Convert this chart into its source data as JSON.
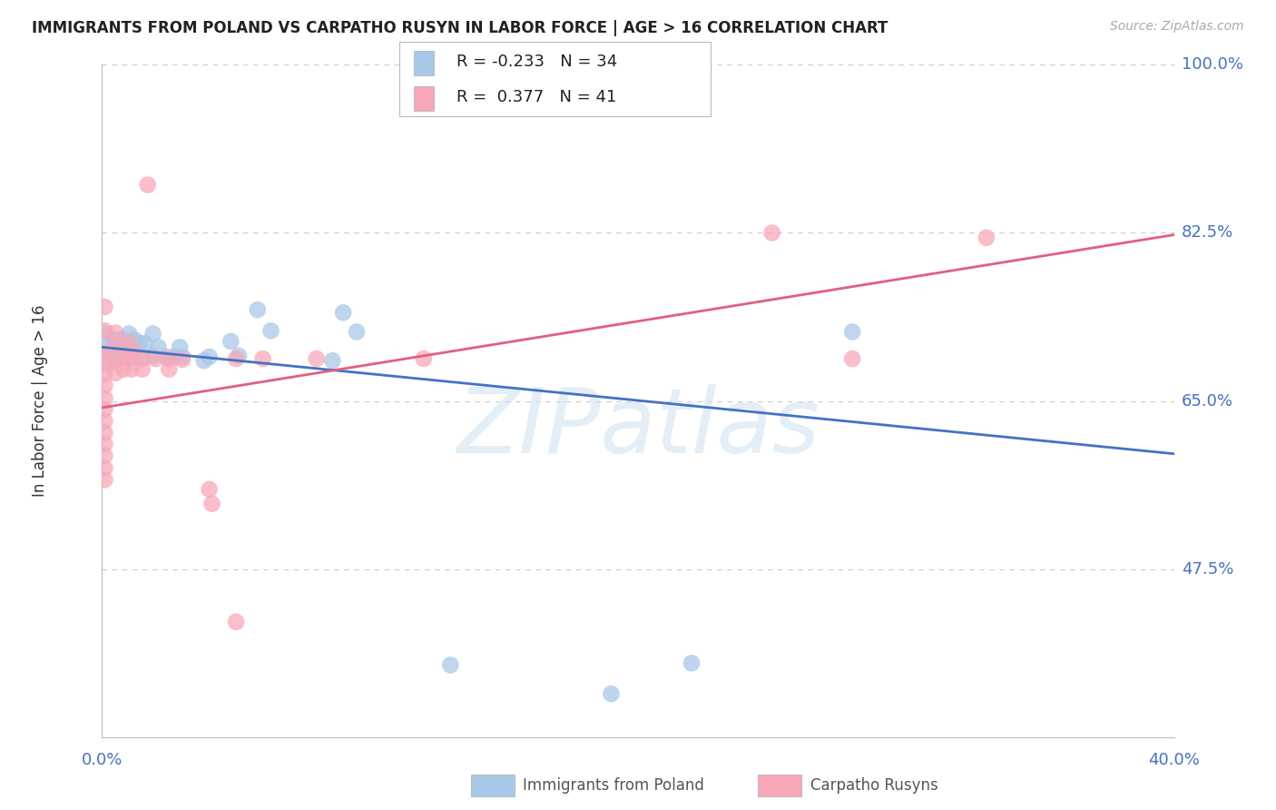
{
  "title": "IMMIGRANTS FROM POLAND VS CARPATHO RUSYN IN LABOR FORCE | AGE > 16 CORRELATION CHART",
  "source": "Source: ZipAtlas.com",
  "ylabel": "In Labor Force | Age > 16",
  "xmin": 0.0,
  "xmax": 0.4,
  "ymin": 0.3,
  "ymax": 1.0,
  "ytick_positions": [
    0.475,
    0.65,
    0.825,
    1.0
  ],
  "ytick_labels": [
    "47.5%",
    "65.0%",
    "82.5%",
    "100.0%"
  ],
  "xtick_positions": [
    0.0,
    0.08,
    0.16,
    0.24,
    0.32,
    0.4
  ],
  "xtick_labels": [
    "0.0%",
    "",
    "",
    "",
    "",
    "40.0%"
  ],
  "blue_scatter_color": "#a8c8e8",
  "pink_scatter_color": "#f8a8b8",
  "blue_line_color": "#4472c4",
  "pink_line_color": "#e06080",
  "axis_label_color": "#4472c4",
  "title_color": "#222222",
  "source_color": "#aaaaaa",
  "grid_color": "#cccccc",
  "watermark_color": "#cde0f0",
  "watermark_text": "ZIPatlas",
  "legend_label1": "Immigrants from Poland",
  "legend_label2": "Carpatho Rusyns",
  "poland_points": [
    [
      0.001,
      0.72
    ],
    [
      0.001,
      0.705
    ],
    [
      0.002,
      0.693
    ],
    [
      0.004,
      0.714
    ],
    [
      0.004,
      0.702
    ],
    [
      0.005,
      0.69
    ],
    [
      0.006,
      0.714
    ],
    [
      0.007,
      0.704
    ],
    [
      0.008,
      0.714
    ],
    [
      0.01,
      0.72
    ],
    [
      0.01,
      0.704
    ],
    [
      0.01,
      0.694
    ],
    [
      0.012,
      0.714
    ],
    [
      0.014,
      0.71
    ],
    [
      0.015,
      0.695
    ],
    [
      0.016,
      0.71
    ],
    [
      0.019,
      0.72
    ],
    [
      0.019,
      0.697
    ],
    [
      0.021,
      0.706
    ],
    [
      0.024,
      0.696
    ],
    [
      0.027,
      0.696
    ],
    [
      0.029,
      0.706
    ],
    [
      0.03,
      0.696
    ],
    [
      0.038,
      0.692
    ],
    [
      0.04,
      0.696
    ],
    [
      0.048,
      0.712
    ],
    [
      0.051,
      0.697
    ],
    [
      0.058,
      0.745
    ],
    [
      0.063,
      0.723
    ],
    [
      0.086,
      0.692
    ],
    [
      0.09,
      0.742
    ],
    [
      0.095,
      0.722
    ],
    [
      0.28,
      0.722
    ],
    [
      0.13,
      0.375
    ],
    [
      0.19,
      0.345
    ],
    [
      0.22,
      0.377
    ]
  ],
  "rusyn_points": [
    [
      0.001,
      0.748
    ],
    [
      0.001,
      0.723
    ],
    [
      0.001,
      0.7
    ],
    [
      0.001,
      0.689
    ],
    [
      0.001,
      0.678
    ],
    [
      0.001,
      0.666
    ],
    [
      0.001,
      0.653
    ],
    [
      0.001,
      0.641
    ],
    [
      0.001,
      0.629
    ],
    [
      0.001,
      0.617
    ],
    [
      0.001,
      0.605
    ],
    [
      0.001,
      0.593
    ],
    [
      0.001,
      0.58
    ],
    [
      0.001,
      0.568
    ],
    [
      0.005,
      0.721
    ],
    [
      0.005,
      0.709
    ],
    [
      0.005,
      0.691
    ],
    [
      0.005,
      0.679
    ],
    [
      0.007,
      0.696
    ],
    [
      0.008,
      0.683
    ],
    [
      0.01,
      0.711
    ],
    [
      0.01,
      0.694
    ],
    [
      0.011,
      0.683
    ],
    [
      0.012,
      0.701
    ],
    [
      0.015,
      0.694
    ],
    [
      0.015,
      0.683
    ],
    [
      0.017,
      0.875
    ],
    [
      0.02,
      0.694
    ],
    [
      0.025,
      0.694
    ],
    [
      0.025,
      0.683
    ],
    [
      0.03,
      0.693
    ],
    [
      0.04,
      0.558
    ],
    [
      0.041,
      0.543
    ],
    [
      0.05,
      0.694
    ],
    [
      0.06,
      0.694
    ],
    [
      0.08,
      0.694
    ],
    [
      0.12,
      0.694
    ],
    [
      0.05,
      0.42
    ],
    [
      0.25,
      0.825
    ],
    [
      0.33,
      0.82
    ],
    [
      0.28,
      0.694
    ]
  ],
  "poland_trendline_x": [
    0.0,
    0.4
  ],
  "poland_trendline_y": [
    0.706,
    0.595
  ],
  "rusyn_trendline_x": [
    0.0,
    0.4
  ],
  "rusyn_trendline_y": [
    0.643,
    0.823
  ]
}
